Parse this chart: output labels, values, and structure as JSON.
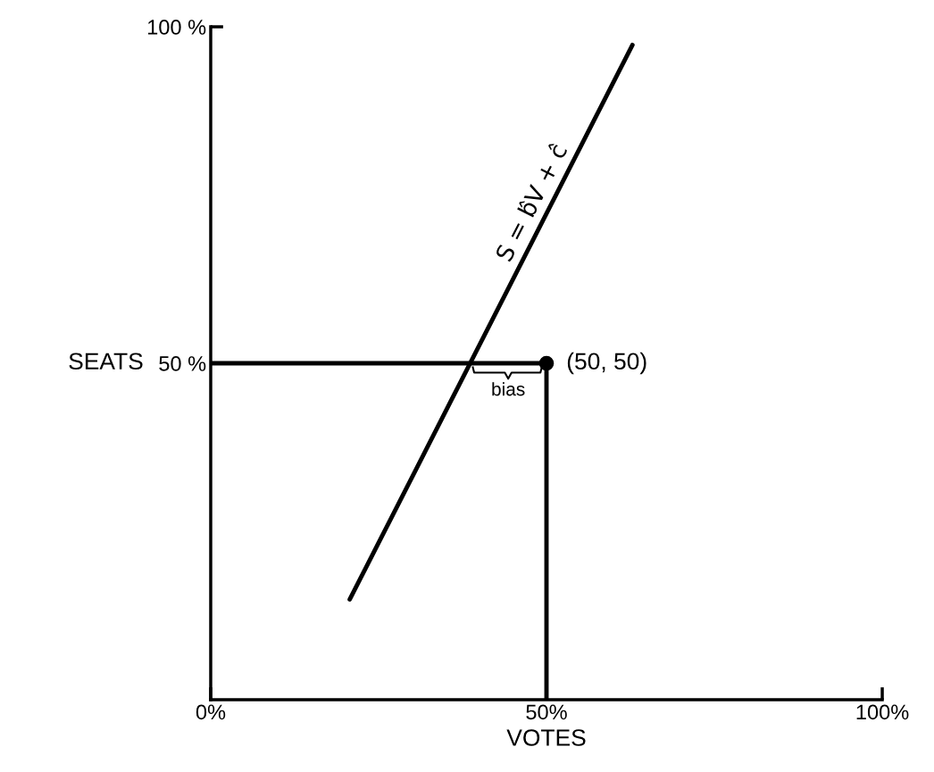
{
  "chart_data": {
    "type": "line",
    "xlabel": "VOTES",
    "ylabel": "SEATS",
    "xlim": [
      0,
      100
    ],
    "ylim": [
      0,
      100
    ],
    "xticks": [
      {
        "value": 0,
        "label": "0%"
      },
      {
        "value": 50,
        "label": "50%"
      },
      {
        "value": 100,
        "label": "100%"
      }
    ],
    "yticks": [
      {
        "value": 50,
        "label": "50 %"
      },
      {
        "value": 100,
        "label": "100 %"
      }
    ],
    "grid": false,
    "series": [
      {
        "color": "#000000",
        "x": [
          20.7,
          62.8
        ],
        "values": [
          14.9,
          97.3
        ]
      },
      {
        "color": "#000000",
        "x": [
          0,
          50,
          50
        ],
        "values": [
          50,
          50,
          0
        ]
      },
      {
        "type": "scatter",
        "color": "#000000",
        "marker": "circle",
        "x": [
          50
        ],
        "values": [
          50
        ]
      }
    ],
    "annotations": [
      {
        "text": "S = b̂V + ĉ",
        "x": 49.5,
        "y": 73
      },
      {
        "text": "(50, 50)",
        "x": 50,
        "y": 50
      },
      {
        "text": "bias",
        "x": 44.3,
        "y": 50
      }
    ]
  }
}
